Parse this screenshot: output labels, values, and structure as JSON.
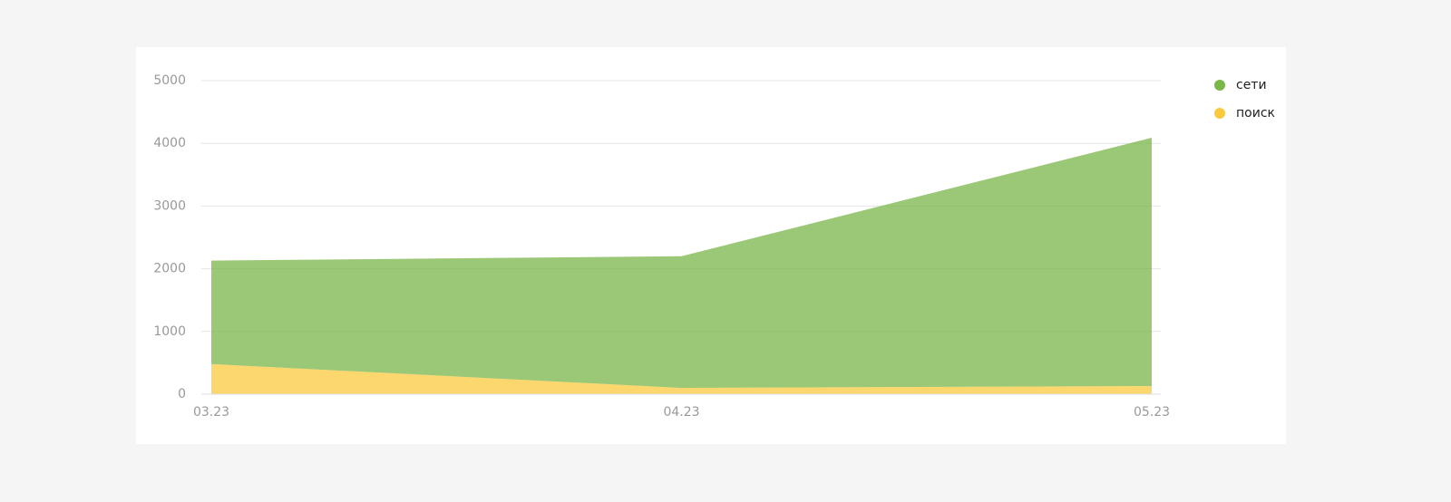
{
  "chart_data": {
    "type": "stacked-area",
    "categories": [
      "03.23",
      "04.23",
      "05.23"
    ],
    "series": [
      {
        "name": "сети",
        "color": "#7ab648",
        "values": [
          1650,
          2100,
          3960
        ]
      },
      {
        "name": "поиск",
        "color": "#fbc93d",
        "values": [
          480,
          100,
          130
        ]
      }
    ],
    "ylim": [
      0,
      5000
    ],
    "yticks": [
      0,
      1000,
      2000,
      3000,
      4000,
      5000
    ],
    "grid": true,
    "legend": "top-right"
  }
}
